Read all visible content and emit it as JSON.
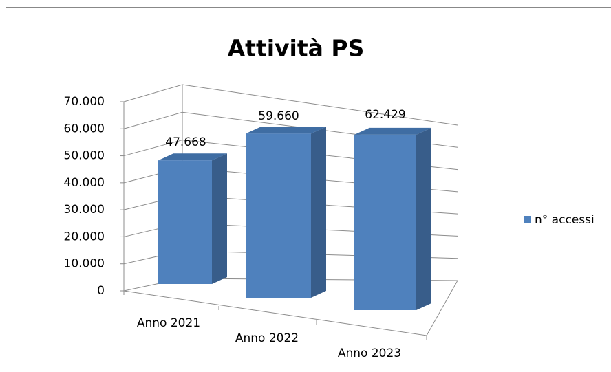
{
  "chart_data": {
    "type": "bar3d",
    "title": "Attività PS",
    "categories": [
      "Anno 2021",
      "Anno 2022",
      "Anno 2023"
    ],
    "series": [
      {
        "name": "n° accessi",
        "color": "#4f81bd",
        "values": [
          47668,
          59660,
          62429
        ],
        "value_labels": [
          "47.668",
          "59.660",
          "62.429"
        ]
      }
    ],
    "ylim": [
      0,
      70000
    ],
    "yticks": [
      0,
      {
        "value": 10000,
        "label": "10.000"
      },
      {
        "value": 20000,
        "label": "20.000"
      },
      {
        "value": 30000,
        "label": "30.000"
      },
      {
        "value": 40000,
        "label": "40.000"
      },
      {
        "value": 50000,
        "label": "50.000"
      },
      {
        "value": 60000,
        "label": "60.000"
      },
      {
        "value": 70000,
        "label": "70.000"
      }
    ],
    "grid": true,
    "legend": "right"
  }
}
